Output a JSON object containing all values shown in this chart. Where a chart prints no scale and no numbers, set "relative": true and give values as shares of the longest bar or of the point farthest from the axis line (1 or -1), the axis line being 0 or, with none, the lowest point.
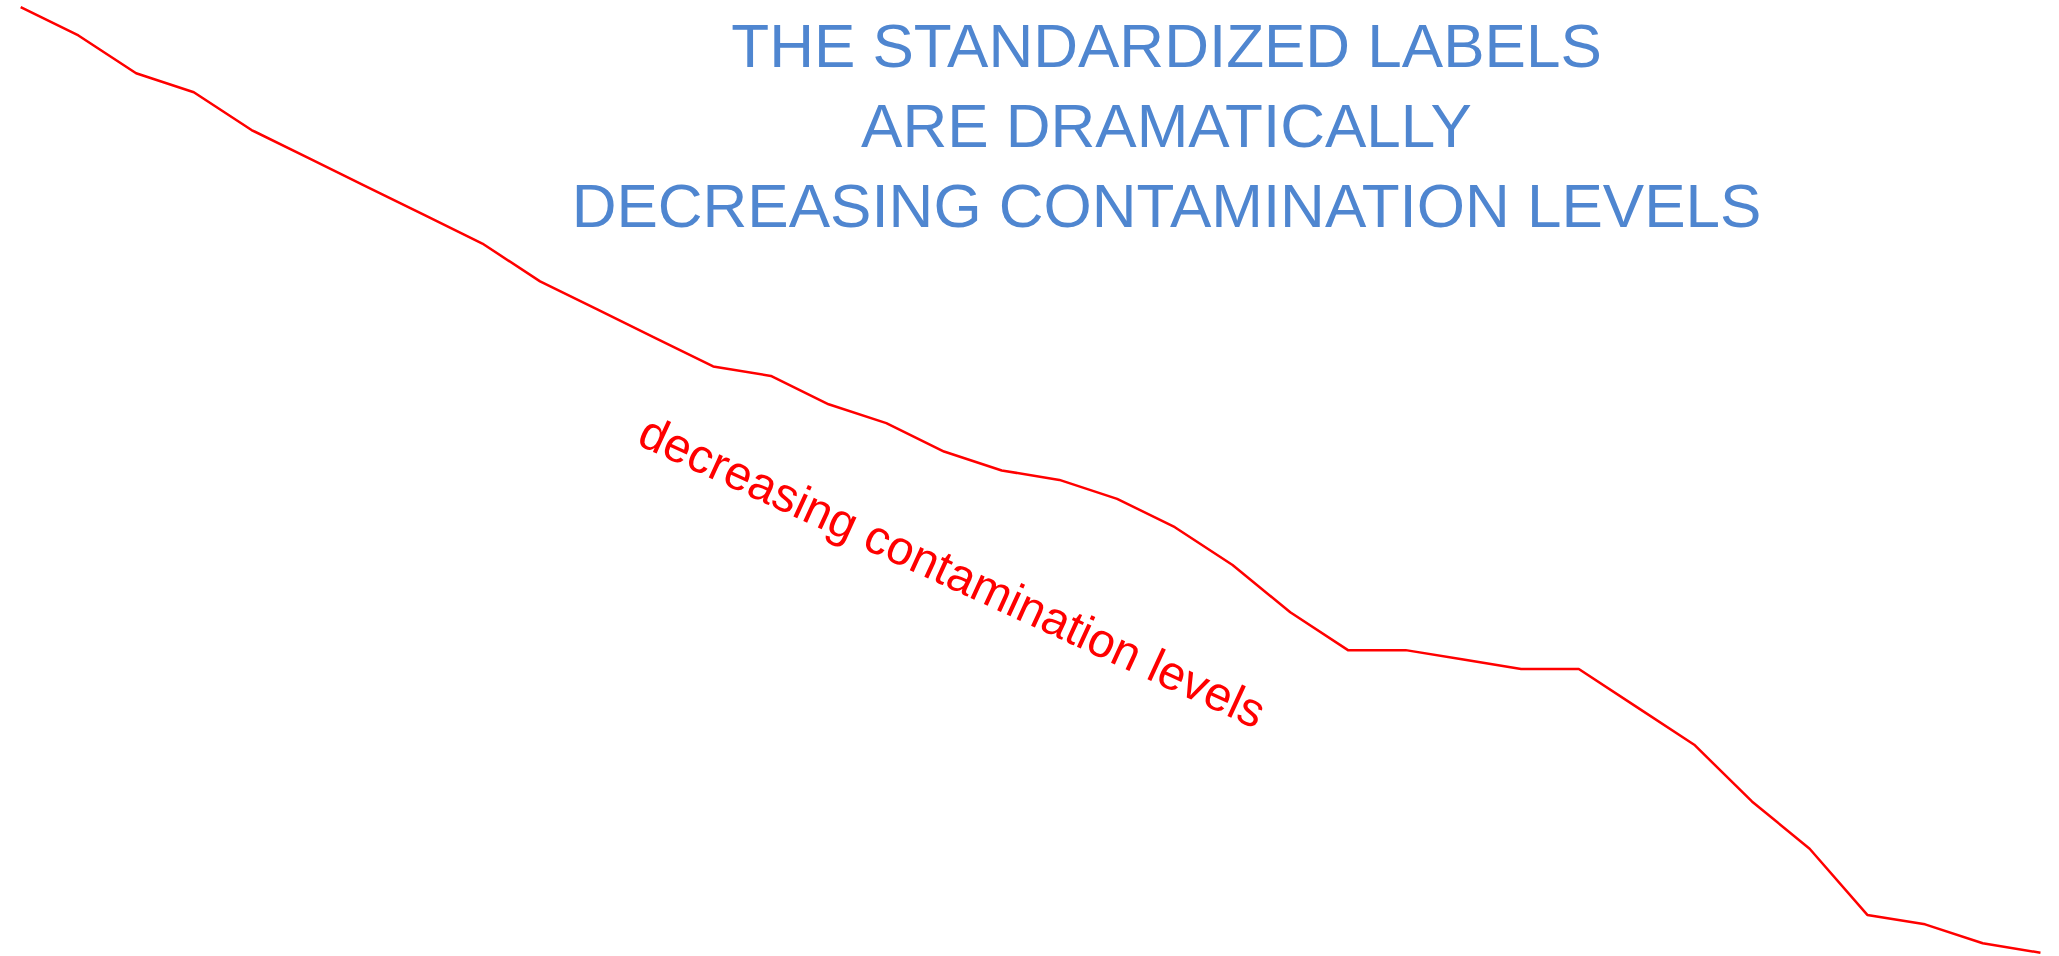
{
  "chart_data": {
    "type": "line",
    "relative": true,
    "title": "THE STANDARDIZED LABELS\nARE DRAMATICALLY\nDECREASING CONTAMINATION LEVELS",
    "annotations": [
      "decreasing contamination levels"
    ],
    "categories": [
      null,
      null,
      null,
      null,
      null,
      null,
      null,
      null,
      null,
      null,
      null,
      null,
      null,
      null,
      null,
      null,
      null,
      null,
      null,
      null,
      null,
      null,
      null,
      null,
      null,
      null,
      null,
      null,
      null,
      null,
      null,
      null,
      null,
      null,
      null,
      null
    ],
    "series": [
      {
        "color": "#ff0000",
        "values": [
          1.0,
          0.97,
          0.93,
          0.91,
          0.87,
          0.84,
          0.81,
          0.78,
          0.75,
          0.71,
          0.68,
          0.65,
          0.62,
          0.61,
          0.58,
          0.56,
          0.53,
          0.51,
          0.5,
          0.48,
          0.45,
          0.41,
          0.36,
          0.32,
          0.32,
          0.31,
          0.3,
          0.3,
          0.26,
          0.22,
          0.16,
          0.11,
          0.04,
          0.03,
          0.01,
          0.0
        ]
      }
    ]
  }
}
